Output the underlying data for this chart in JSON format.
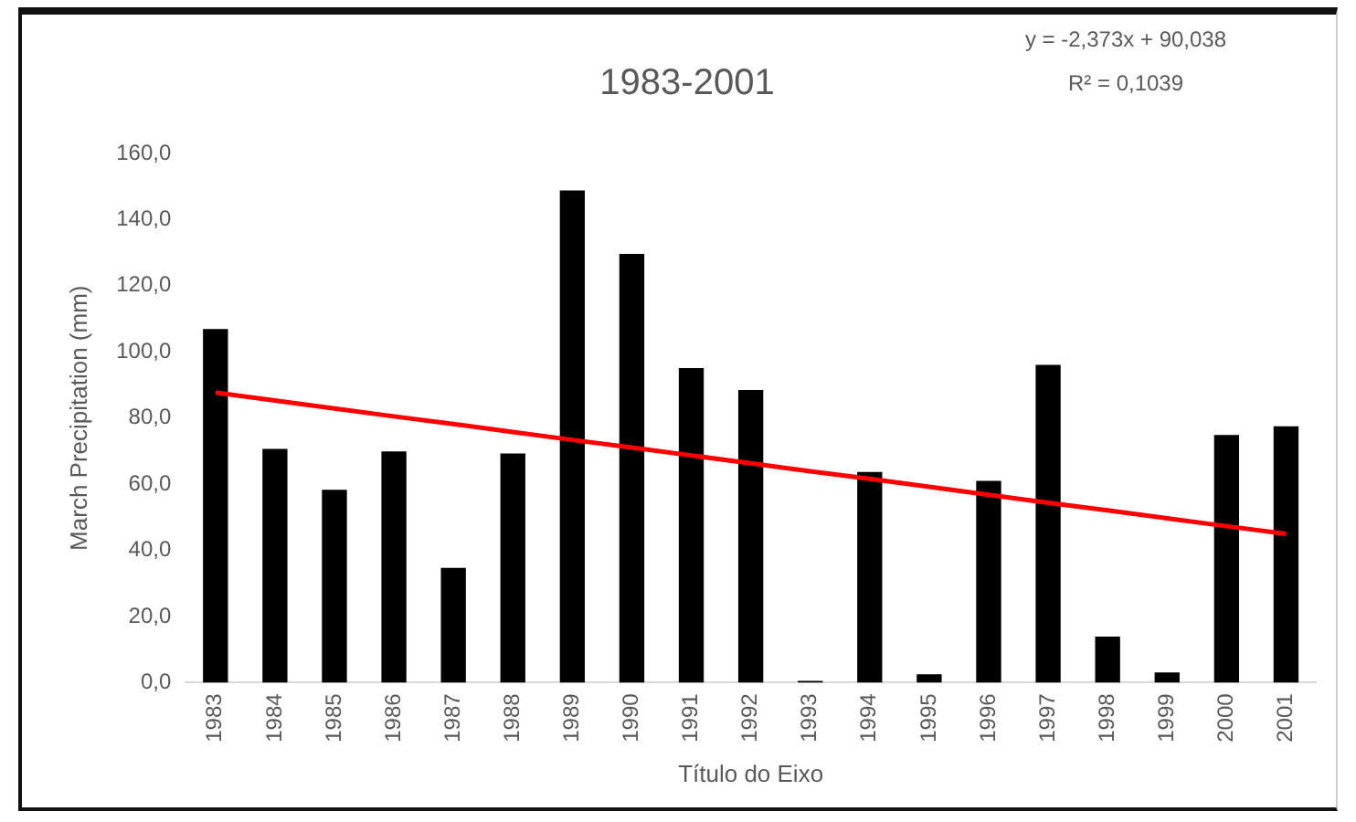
{
  "chart_data": {
    "type": "bar",
    "title": "1983-2001",
    "xlabel": "Título do Eixo",
    "ylabel": "March Precipitation (mm)",
    "categories": [
      "1983",
      "1984",
      "1985",
      "1986",
      "1987",
      "1988",
      "1989",
      "1990",
      "1991",
      "1992",
      "1993",
      "1994",
      "1995",
      "1996",
      "1997",
      "1998",
      "1999",
      "2000",
      "2001"
    ],
    "series": [
      {
        "color": "#000000",
        "values": [
          106.9,
          70.7,
          58.3,
          69.9,
          34.7,
          69.3,
          148.8,
          129.6,
          95.1,
          88.5,
          0.5,
          63.7,
          2.5,
          61.0,
          96.1,
          13.9,
          3.1,
          74.9,
          77.5
        ]
      },
      {
        "type": "line",
        "color": "#ff0000",
        "values": [
          87.7,
          85.3,
          82.9,
          80.5,
          78.2,
          75.8,
          73.4,
          71.1,
          68.7,
          66.3,
          63.9,
          61.6,
          59.2,
          56.8,
          54.4,
          52.1,
          49.7,
          47.3,
          45.0
        ]
      }
    ],
    "ylim": [
      0,
      160
    ],
    "yticks": [
      {
        "value": 0,
        "label": "0,0"
      },
      {
        "value": 20,
        "label": "20,0"
      },
      {
        "value": 40,
        "label": "40,0"
      },
      {
        "value": 60,
        "label": "60,0"
      },
      {
        "value": 80,
        "label": "80,0"
      },
      {
        "value": 100,
        "label": "100,0"
      },
      {
        "value": 120,
        "label": "120,0"
      },
      {
        "value": 140,
        "label": "140,0"
      },
      {
        "value": 160,
        "label": "160,0"
      }
    ],
    "grid": false,
    "legend": false,
    "marker": "none",
    "annotations": [
      "y = -2,373x + 90,038",
      "R² = 0,1039"
    ]
  }
}
